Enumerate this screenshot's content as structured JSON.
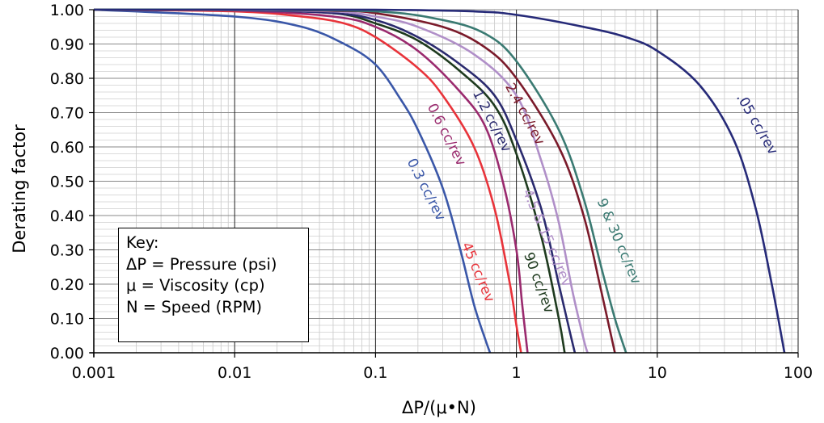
{
  "chart_data": {
    "type": "line",
    "title": "",
    "xlabel": "ΔP/(μ•N)",
    "ylabel": "Derating factor",
    "xscale": "log",
    "xlim": [
      0.001,
      100
    ],
    "ylim": [
      0,
      1
    ],
    "grid": true,
    "x_tick_labels": [
      "0.001",
      "0.01",
      "0.1",
      "1",
      "10",
      "100"
    ],
    "y_tick_labels": [
      "0.00",
      "0.10",
      "0.20",
      "0.30",
      "0.40",
      "0.50",
      "0.60",
      "0.70",
      "0.80",
      "0.90",
      "1.00"
    ],
    "key": {
      "title": "Key:",
      "lines": [
        "ΔP = Pressure (psi)",
        "μ = Viscosity (cp)",
        "N = Speed (RPM)"
      ]
    },
    "series": [
      {
        "name": "0.3 cc/rev",
        "color": "#3a57a8",
        "x": [
          0.001,
          0.01,
          0.03,
          0.06,
          0.1,
          0.15,
          0.2,
          0.3,
          0.4,
          0.5,
          0.6,
          0.65
        ],
        "y": [
          1.0,
          0.98,
          0.95,
          0.9,
          0.84,
          0.74,
          0.65,
          0.48,
          0.3,
          0.14,
          0.04,
          0.0
        ]
      },
      {
        "name": "45 cc/rev",
        "color": "#e8333a",
        "x": [
          0.001,
          0.01,
          0.03,
          0.06,
          0.1,
          0.2,
          0.3,
          0.5,
          0.7,
          0.9,
          1.0,
          1.08
        ],
        "y": [
          1.0,
          0.995,
          0.98,
          0.96,
          0.92,
          0.83,
          0.75,
          0.6,
          0.42,
          0.2,
          0.08,
          0.0
        ]
      },
      {
        "name": "0.6 cc/rev",
        "color": "#9a2a6e",
        "x": [
          0.001,
          0.01,
          0.05,
          0.1,
          0.2,
          0.4,
          0.6,
          0.8,
          1.0,
          1.1,
          1.2
        ],
        "y": [
          1.0,
          0.998,
          0.98,
          0.95,
          0.88,
          0.76,
          0.66,
          0.5,
          0.3,
          0.14,
          0.0
        ]
      },
      {
        "name": "90 cc/rev",
        "color": "#1e3a1e",
        "x": [
          0.001,
          0.01,
          0.05,
          0.1,
          0.2,
          0.4,
          0.7,
          1.0,
          1.5,
          2.0,
          2.2
        ],
        "y": [
          1.0,
          0.999,
          0.99,
          0.96,
          0.91,
          0.82,
          0.72,
          0.58,
          0.34,
          0.1,
          0.0
        ]
      },
      {
        "name": "1.2 cc/rev",
        "color": "#2a2a6e",
        "x": [
          0.001,
          0.01,
          0.05,
          0.1,
          0.2,
          0.4,
          0.7,
          1.0,
          1.5,
          2.0,
          2.4,
          2.6
        ],
        "y": [
          1.0,
          0.999,
          0.99,
          0.97,
          0.92,
          0.84,
          0.75,
          0.62,
          0.42,
          0.2,
          0.06,
          0.0
        ]
      },
      {
        "name": "4.5 & 15 cc/rev",
        "color": "#b08fc8",
        "x": [
          0.001,
          0.01,
          0.05,
          0.1,
          0.2,
          0.5,
          1.0,
          1.5,
          2.0,
          2.5,
          3.0,
          3.2
        ],
        "y": [
          1.0,
          0.999,
          0.995,
          0.98,
          0.95,
          0.87,
          0.75,
          0.56,
          0.38,
          0.18,
          0.04,
          0.0
        ]
      },
      {
        "name": "2.4 cc/rev",
        "color": "#7a1a2a",
        "x": [
          0.001,
          0.01,
          0.05,
          0.1,
          0.3,
          0.6,
          1.0,
          2.0,
          3.0,
          4.0,
          5.0
        ],
        "y": [
          1.0,
          1.0,
          0.997,
          0.99,
          0.95,
          0.89,
          0.8,
          0.6,
          0.4,
          0.18,
          0.0
        ]
      },
      {
        "name": "9 & 30 cc/rev",
        "color": "#3a7a72",
        "x": [
          0.001,
          0.01,
          0.1,
          0.3,
          0.6,
          1.0,
          2.0,
          3.0,
          4.0,
          5.0,
          6.0
        ],
        "y": [
          1.0,
          1.0,
          0.995,
          0.97,
          0.93,
          0.85,
          0.65,
          0.45,
          0.25,
          0.1,
          0.0
        ]
      },
      {
        "name": ".05 cc/rev",
        "color": "#262a78",
        "x": [
          0.001,
          0.01,
          0.1,
          0.5,
          1.0,
          3.0,
          6.0,
          10.0,
          20.0,
          35.0,
          50.0,
          65.0,
          80.0
        ],
        "y": [
          1.0,
          1.0,
          1.0,
          0.995,
          0.985,
          0.95,
          0.92,
          0.88,
          0.78,
          0.62,
          0.42,
          0.2,
          0.0
        ]
      }
    ]
  }
}
